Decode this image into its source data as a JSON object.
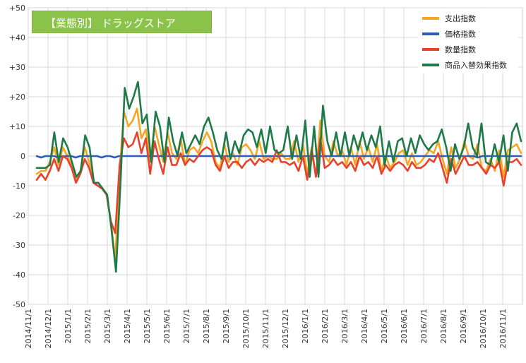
{
  "chart_data": {
    "type": "line",
    "title": "【業態別】 ドラッグストア",
    "ylim": [
      -50,
      50
    ],
    "yticks": [
      "+50",
      "+40",
      "+30",
      "+20",
      "+10",
      "0",
      "-10",
      "-20",
      "-30",
      "-40",
      "-50"
    ],
    "x_labels": [
      "2014/11/1",
      "2014/12/1",
      "2015/1/1",
      "2015/2/1",
      "2015/3/1",
      "2015/4/1",
      "2015/5/1",
      "2015/6/1",
      "2015/7/1",
      "2015/8/1",
      "2015/9/1",
      "2015/10/1",
      "2015/11/1",
      "2015/12/1",
      "2016/1/1",
      "2016/2/1",
      "2016/3/1",
      "2016/4/1",
      "2016/5/1",
      "2016/6/1",
      "2016/7/1",
      "2016/8/1",
      "2016/9/1",
      "2016/10/1",
      "2016/11/1"
    ],
    "grid": true,
    "legend_position": "top-right",
    "series": [
      {
        "name": "支出指数",
        "color": "#f5a623",
        "values": [
          -6,
          -5,
          -5,
          -2,
          3,
          -3,
          3,
          0,
          -3,
          -8,
          -5,
          3,
          -2,
          -9,
          -10,
          -11,
          -13,
          -22,
          -35,
          -5,
          15,
          10,
          12,
          16,
          6,
          9,
          -2,
          10,
          4,
          -2,
          8,
          1,
          -1,
          6,
          -3,
          2,
          3,
          1,
          5,
          8,
          5,
          -2,
          -4,
          4,
          -2,
          1,
          -3,
          3,
          4,
          2,
          -1,
          5,
          -1,
          0,
          -1,
          -1,
          1,
          -1,
          -1,
          5,
          -2,
          4,
          -6,
          3,
          -7,
          12,
          0,
          -2,
          5,
          0,
          2,
          -3,
          3,
          -3,
          5,
          -1,
          3,
          -2,
          4,
          -5,
          0,
          -4,
          -2,
          1,
          2,
          -3,
          1,
          -3,
          -2,
          0,
          2,
          1,
          5,
          -1,
          -6,
          3,
          -4,
          -1,
          5,
          0,
          -1,
          4,
          -4,
          -5,
          -1,
          -5,
          2,
          -7,
          2,
          3,
          4,
          1
        ]
      },
      {
        "name": "価格指数",
        "color": "#2f5dbd",
        "values": [
          0,
          -0.5,
          0,
          0,
          0,
          -0.5,
          0,
          0,
          0,
          -0.5,
          0,
          0,
          0,
          0,
          0,
          -0.5,
          0,
          0,
          -0.5,
          0,
          0,
          0,
          0,
          0,
          0,
          0,
          0,
          0,
          0,
          0,
          0,
          0,
          0,
          0,
          0,
          0,
          0,
          0,
          0,
          0,
          0,
          0,
          0,
          0,
          0,
          0,
          0,
          0,
          0,
          0,
          0,
          0,
          0,
          0,
          0,
          0,
          0,
          0,
          0,
          0,
          0,
          0,
          0,
          0,
          0,
          0,
          0,
          0,
          0,
          0,
          0,
          0,
          0,
          0,
          0,
          0,
          0,
          0,
          0,
          0,
          0,
          0,
          0,
          0,
          0,
          0,
          0,
          0,
          0,
          0,
          0,
          0,
          0,
          0,
          0,
          0,
          0,
          0,
          0,
          0,
          0,
          0,
          -0.5,
          0,
          0,
          0,
          0,
          0,
          0,
          0,
          0,
          0,
          0
        ]
      },
      {
        "name": "数量指数",
        "color": "#e8412c",
        "values": [
          -8,
          -6,
          -8,
          -5,
          -1,
          -5,
          0,
          -1,
          -4,
          -9,
          -6,
          -1,
          -4,
          -9,
          -10,
          -11,
          -13,
          -22,
          -26,
          -3,
          6,
          3,
          4,
          8,
          1,
          6,
          -6,
          5,
          -1,
          -6,
          3,
          -3,
          -3,
          1,
          -3,
          -1,
          -2,
          0,
          2,
          3,
          2,
          -3,
          -5,
          0,
          -4,
          -2,
          -2,
          -4,
          -2,
          -1,
          -3,
          -1,
          -2,
          -1,
          -2,
          2,
          -2,
          -2,
          -3,
          -2,
          -5,
          0,
          -8,
          2,
          -7,
          6,
          -4,
          -3,
          -1,
          -3,
          -2,
          -4,
          -2,
          -5,
          0,
          -3,
          -2,
          -4,
          0,
          -6,
          -3,
          -5,
          -3,
          -2,
          -3,
          -5,
          -2,
          -4,
          -4,
          -3,
          -1,
          -2,
          1,
          -4,
          -9,
          -1,
          -6,
          -3,
          0,
          -3,
          -3,
          -2,
          -4,
          -6,
          -3,
          -4,
          -2,
          -10,
          -2,
          -2,
          -1,
          -3
        ]
      },
      {
        "name": "商品入替効果指数",
        "color": "#1f7a4a",
        "values": [
          -4,
          -4,
          -4,
          -3,
          8,
          -2,
          6,
          3,
          -2,
          -7,
          -5,
          7,
          3,
          -9,
          -9,
          -11,
          -13,
          -25,
          -39,
          -10,
          23,
          16,
          20,
          25,
          11,
          14,
          -2,
          15,
          10,
          -2,
          13,
          5,
          0,
          8,
          1,
          4,
          7,
          4,
          10,
          13,
          8,
          2,
          -1,
          8,
          -1,
          5,
          1,
          7,
          9,
          8,
          3,
          9,
          1,
          10,
          2,
          1,
          2,
          10,
          -1,
          7,
          -1,
          12,
          -7,
          10,
          -7,
          17,
          5,
          0,
          8,
          0,
          8,
          0,
          7,
          2,
          8,
          2,
          7,
          3,
          10,
          -3,
          5,
          -2,
          5,
          6,
          0,
          6,
          1,
          7,
          4,
          2,
          4,
          5,
          9,
          3,
          -5,
          4,
          -1,
          3,
          11,
          3,
          0,
          11,
          -2,
          -3,
          4,
          -2,
          7,
          -5,
          8,
          11,
          5
        ]
      }
    ]
  }
}
